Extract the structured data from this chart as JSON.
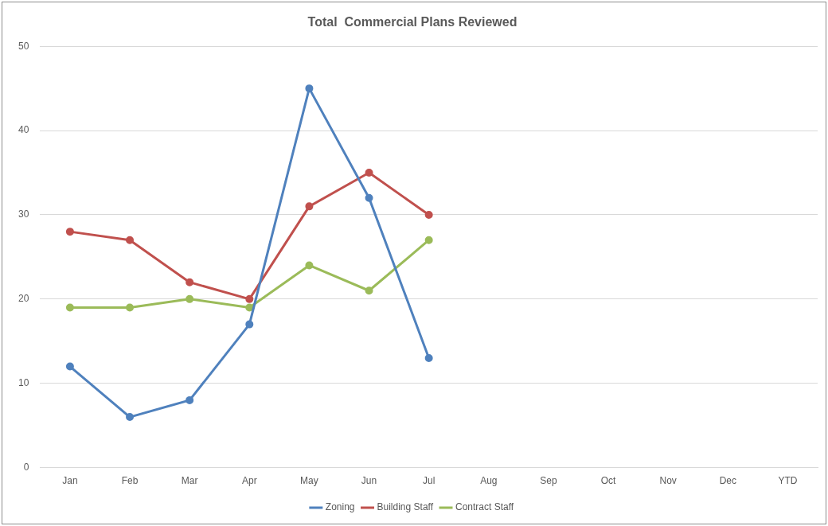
{
  "chart_data": {
    "type": "line",
    "title": "Total  Commercial Plans Reviewed",
    "categories": [
      "Jan",
      "Feb",
      "Mar",
      "Apr",
      "May",
      "Jun",
      "Jul",
      "Aug",
      "Sep",
      "Oct",
      "Nov",
      "Dec",
      "YTD"
    ],
    "series": [
      {
        "name": "Zoning",
        "color": "#4f81bd",
        "values": [
          12,
          6,
          8,
          17,
          45,
          32,
          13,
          null,
          null,
          null,
          null,
          null,
          null
        ]
      },
      {
        "name": "Building Staff",
        "color": "#c0504d",
        "values": [
          28,
          27,
          22,
          20,
          31,
          35,
          30,
          null,
          null,
          null,
          null,
          null,
          null
        ]
      },
      {
        "name": "Contract Staff",
        "color": "#9bbb59",
        "values": [
          19,
          19,
          20,
          19,
          24,
          21,
          27,
          null,
          null,
          null,
          null,
          null,
          null
        ]
      }
    ],
    "ylim": [
      0,
      50
    ],
    "yticks": [
      0,
      10,
      20,
      30,
      40,
      50
    ],
    "grid": "y",
    "legend": "bottom",
    "marker": "circle",
    "line_style": "solid"
  }
}
